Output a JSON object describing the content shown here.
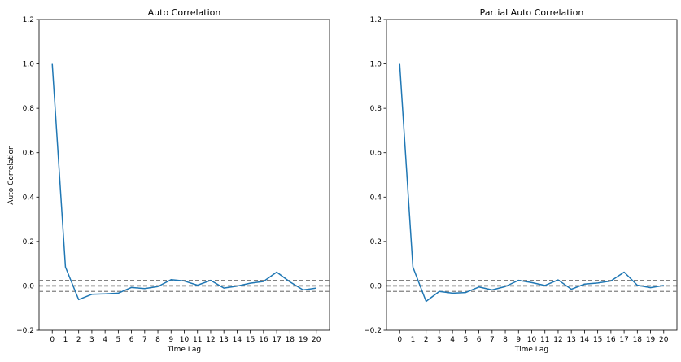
{
  "chart_data": [
    {
      "type": "line",
      "title": "Auto Correlation",
      "xlabel": "Time Lag",
      "ylabel": "Auto Correlation",
      "x": [
        0,
        1,
        2,
        3,
        4,
        5,
        6,
        7,
        8,
        9,
        10,
        11,
        12,
        13,
        14,
        15,
        16,
        17,
        18,
        19,
        20
      ],
      "xticks": [
        "0",
        "1",
        "2",
        "3",
        "4",
        "5",
        "6",
        "7",
        "8",
        "9",
        "10",
        "11",
        "12",
        "13",
        "14",
        "15",
        "16",
        "17",
        "18",
        "19",
        "20"
      ],
      "xlim": [
        -1,
        21
      ],
      "ylim": [
        -0.2,
        1.2
      ],
      "yticks": [
        "−0.2",
        "0.0",
        "0.2",
        "0.4",
        "0.6",
        "0.8",
        "1.0",
        "1.2"
      ],
      "series": [
        {
          "values": [
            1.0,
            0.085,
            -0.062,
            -0.038,
            -0.036,
            -0.033,
            -0.007,
            -0.012,
            -0.003,
            0.028,
            0.022,
            0.003,
            0.025,
            -0.01,
            -0.001,
            0.012,
            0.02,
            0.062,
            0.018,
            -0.018,
            -0.01
          ],
          "color": "#1f77b4"
        }
      ],
      "reference_lines": [
        {
          "y": 0.0,
          "color": "#000000",
          "style": "dashed"
        },
        {
          "y": 0.025,
          "color": "#808080",
          "style": "dashed"
        },
        {
          "y": -0.025,
          "color": "#808080",
          "style": "dashed"
        }
      ],
      "grid": false
    },
    {
      "type": "line",
      "title": "Partial Auto Correlation",
      "xlabel": "Time Lag",
      "ylabel": "",
      "x": [
        0,
        1,
        2,
        3,
        4,
        5,
        6,
        7,
        8,
        9,
        10,
        11,
        12,
        13,
        14,
        15,
        16,
        17,
        18,
        19,
        20
      ],
      "xticks": [
        "0",
        "1",
        "2",
        "3",
        "4",
        "5",
        "6",
        "7",
        "8",
        "9",
        "10",
        "11",
        "12",
        "13",
        "14",
        "15",
        "16",
        "17",
        "18",
        "19",
        "20"
      ],
      "xlim": [
        -1,
        21
      ],
      "ylim": [
        -0.2,
        1.2
      ],
      "yticks": [
        "−0.2",
        "0.0",
        "0.2",
        "0.4",
        "0.6",
        "0.8",
        "1.0",
        "1.2"
      ],
      "series": [
        {
          "values": [
            1.0,
            0.085,
            -0.07,
            -0.025,
            -0.033,
            -0.03,
            -0.005,
            -0.018,
            -0.003,
            0.025,
            0.015,
            0.002,
            0.027,
            -0.015,
            0.008,
            0.013,
            0.022,
            0.062,
            0.003,
            -0.008,
            0.002
          ],
          "color": "#1f77b4"
        }
      ],
      "reference_lines": [
        {
          "y": 0.0,
          "color": "#000000",
          "style": "dashed"
        },
        {
          "y": 0.025,
          "color": "#808080",
          "style": "dashed"
        },
        {
          "y": -0.025,
          "color": "#808080",
          "style": "dashed"
        }
      ],
      "grid": false
    }
  ]
}
